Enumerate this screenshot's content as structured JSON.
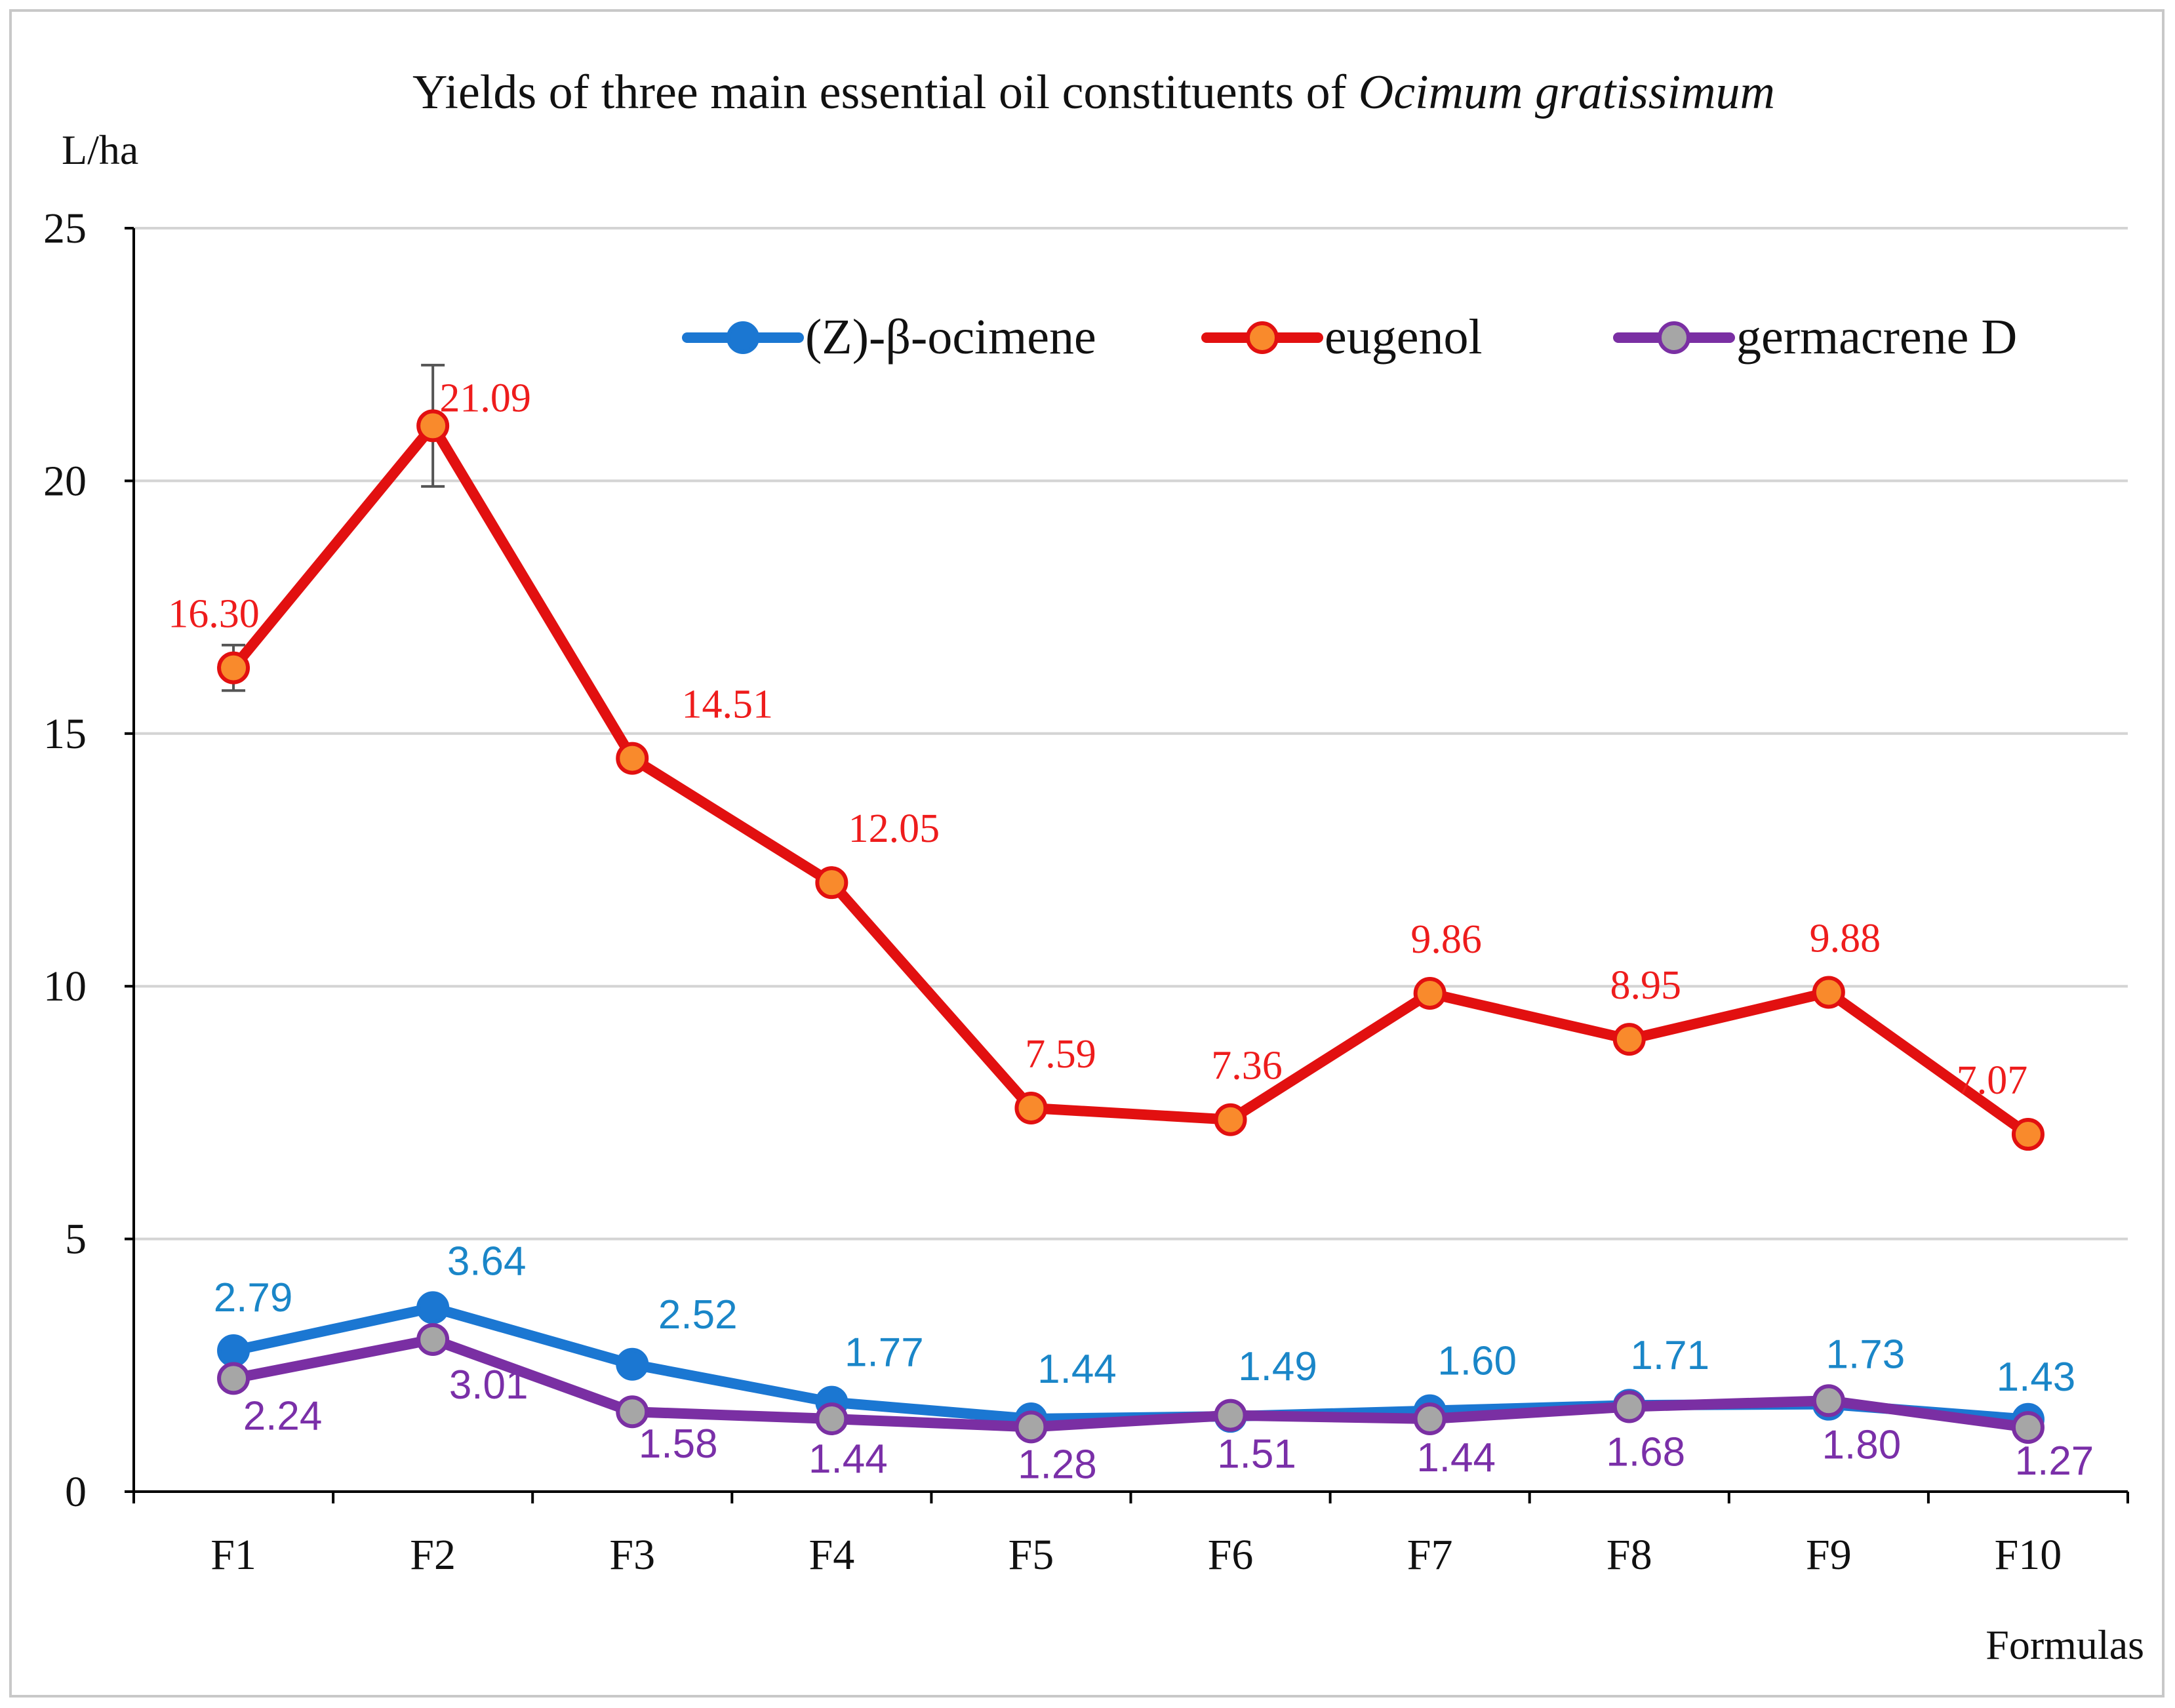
{
  "chart_data": {
    "type": "line",
    "title_prefix": "Yields of three main essential oil constituents of ",
    "title_italic": "Ocimum gratissimum",
    "ylabel": "L/ha",
    "xlabel": "Formulas",
    "ylim": [
      0,
      25
    ],
    "yticks": [
      "0",
      "5",
      "10",
      "15",
      "20",
      "25"
    ],
    "grid": true,
    "legend_position": "top-right",
    "categories": [
      "F1",
      "F2",
      "F3",
      "F4",
      "F5",
      "F6",
      "F7",
      "F8",
      "F9",
      "F10"
    ],
    "series": [
      {
        "name": "(Z)-β-ocimene",
        "color": "#1b77d2",
        "label_color": "#1a86c8",
        "values": [
          2.79,
          3.64,
          2.52,
          1.77,
          1.44,
          1.49,
          1.6,
          1.71,
          1.73,
          1.43
        ],
        "labels": [
          "2.79",
          "3.64",
          "2.52",
          "1.77",
          "1.44",
          "1.49",
          "1.60",
          "1.71",
          "1.73",
          "1.43"
        ]
      },
      {
        "name": "eugenol",
        "color": "#e21010",
        "marker_fill": "#f98a2c",
        "label_color": "#ee1c1c",
        "values": [
          16.3,
          21.09,
          14.51,
          12.05,
          7.59,
          7.36,
          9.86,
          8.95,
          9.88,
          7.07
        ],
        "labels": [
          "16.30",
          "21.09",
          "14.51",
          "12.05",
          "7.59",
          "7.36",
          "9.86",
          "8.95",
          "9.88",
          "7.07"
        ],
        "error": [
          0.45,
          1.2,
          0,
          0,
          0,
          0,
          0.2,
          0,
          0,
          0
        ]
      },
      {
        "name": "germacrene D",
        "color": "#7a2fa3",
        "marker_fill": "#a6a6a6",
        "label_color": "#7a2fa8",
        "values": [
          2.24,
          3.01,
          1.58,
          1.44,
          1.28,
          1.51,
          1.44,
          1.68,
          1.8,
          1.27
        ],
        "labels": [
          "2.24",
          "3.01",
          "1.58",
          "1.44",
          "1.28",
          "1.51",
          "1.44",
          "1.68",
          "1.80",
          "1.27"
        ]
      }
    ]
  }
}
